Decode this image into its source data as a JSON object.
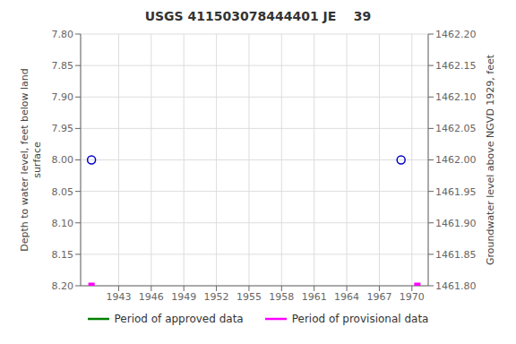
{
  "chart_data": {
    "type": "scatter",
    "title": "USGS 411503078444401 JE    39",
    "y_label": "Depth to water level, feet below land\nsurface",
    "y2_label": "Groundwater level above NGVD 1929, feet",
    "xlim": [
      1939.5,
      1971.5
    ],
    "xticks": [
      1943,
      1946,
      1949,
      1952,
      1955,
      1958,
      1961,
      1964,
      1967,
      1970
    ],
    "ylim": [
      8.2,
      7.8
    ],
    "yticks": [
      {
        "value": 7.8,
        "label": "7.80"
      },
      {
        "value": 7.85,
        "label": "7.85"
      },
      {
        "value": 7.9,
        "label": "7.90"
      },
      {
        "value": 7.95,
        "label": "7.95"
      },
      {
        "value": 8.0,
        "label": "8.00"
      },
      {
        "value": 8.05,
        "label": "8.05"
      },
      {
        "value": 8.1,
        "label": "8.10"
      },
      {
        "value": 8.15,
        "label": "8.15"
      },
      {
        "value": 8.2,
        "label": "8.20"
      }
    ],
    "y2lim": [
      1461.8,
      1462.2
    ],
    "y2ticks": [
      {
        "value": 1461.8,
        "label": "1461.80"
      },
      {
        "value": 1461.85,
        "label": "1461.85"
      },
      {
        "value": 1461.9,
        "label": "1461.90"
      },
      {
        "value": 1461.95,
        "label": "1461.95"
      },
      {
        "value": 1462.0,
        "label": "1462.00"
      },
      {
        "value": 1462.05,
        "label": "1462.05"
      },
      {
        "value": 1462.1,
        "label": "1462.10"
      },
      {
        "value": 1462.15,
        "label": "1462.15"
      },
      {
        "value": 1462.2,
        "label": "1462.20"
      }
    ],
    "grid": true,
    "legend": "bottom",
    "series": [
      {
        "type": "scatter",
        "marker": "open_circle",
        "color": "#0000cc",
        "x": [
          1940.5,
          1969.0
        ],
        "values": [
          8.0,
          8.0
        ]
      },
      {
        "type": "scatter",
        "marker": "square",
        "color": "#ff00ff",
        "x": [
          1940.5,
          1970.5
        ],
        "values": [
          8.2,
          8.2
        ]
      },
      {
        "type": "line",
        "name": "Period of approved data",
        "color": "#008000",
        "x": [],
        "values": []
      },
      {
        "type": "line",
        "name": "Period of provisional data",
        "color": "#ff00ff",
        "x": [],
        "values": []
      }
    ]
  }
}
